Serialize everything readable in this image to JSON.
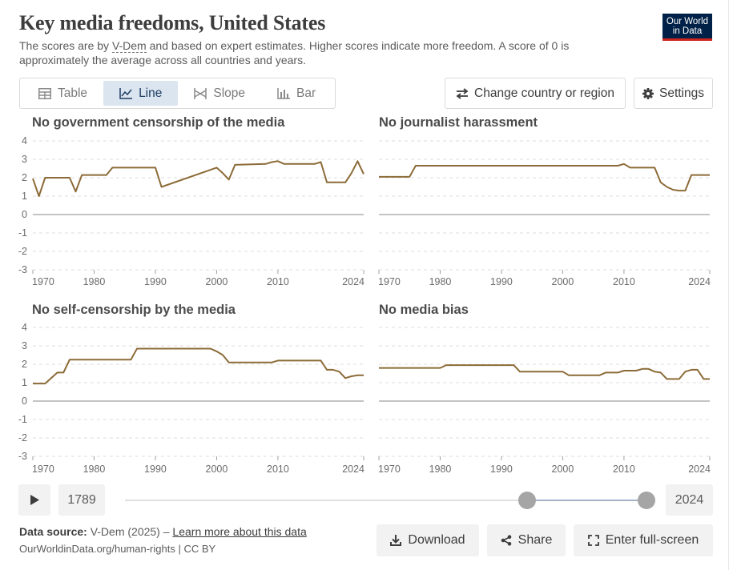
{
  "header": {
    "title": "Key media freedoms, United States",
    "subtitle_pre": "The scores are by ",
    "subtitle_link": "V-Dem",
    "subtitle_post": " and based on expert estimates. Higher scores indicate more freedom. A score of 0 is approximately the average across all countries and years.",
    "logo_line1": "Our World",
    "logo_line2": "in Data"
  },
  "tabs": [
    {
      "label": "Table",
      "icon": "table-icon"
    },
    {
      "label": "Line",
      "icon": "line-chart-icon",
      "active": true
    },
    {
      "label": "Slope",
      "icon": "slope-chart-icon"
    },
    {
      "label": "Bar",
      "icon": "bar-chart-icon"
    }
  ],
  "controls": {
    "change_label": "Change country or region",
    "settings_label": "Settings"
  },
  "colors": {
    "series": "#8c6b38",
    "accent": "#1d3d63",
    "logo_bg": "#002147",
    "logo_stripe": "#ce261e"
  },
  "chart_data": [
    {
      "type": "line",
      "title": "No government censorship of the media",
      "ylim": [
        -3,
        4
      ],
      "yticks": [
        -3,
        -2,
        -1,
        0,
        1,
        2,
        3,
        4
      ],
      "xticks": [
        1970,
        1980,
        1990,
        2000,
        2010,
        2024
      ],
      "xlim": [
        1970,
        2024
      ],
      "grid": true,
      "series": [
        {
          "x": [
            1970,
            1971,
            1972,
            1976,
            1977,
            1978,
            1982,
            1983,
            1989,
            1990,
            1991,
            2000,
            2001,
            2002,
            2003,
            2008,
            2009,
            2010,
            2011,
            2016,
            2017,
            2018,
            2021,
            2022,
            2023,
            2024
          ],
          "y": [
            1.95,
            1.0,
            2.0,
            2.0,
            1.25,
            2.15,
            2.15,
            2.55,
            2.55,
            2.55,
            1.5,
            2.55,
            2.25,
            1.9,
            2.7,
            2.75,
            2.85,
            2.9,
            2.75,
            2.75,
            2.85,
            1.75,
            1.75,
            2.25,
            2.9,
            2.2
          ]
        }
      ]
    },
    {
      "type": "line",
      "title": "No journalist harassment",
      "ylim": [
        -3,
        4
      ],
      "yticks": [
        -3,
        -2,
        -1,
        0,
        1,
        2,
        3,
        4
      ],
      "xticks": [
        1970,
        1980,
        1990,
        2000,
        2010,
        2024
      ],
      "xlim": [
        1970,
        2024
      ],
      "grid": true,
      "series": [
        {
          "x": [
            1970,
            1975,
            1976,
            2009,
            2010,
            2011,
            2015,
            2016,
            2017,
            2018,
            2019,
            2020,
            2021,
            2024
          ],
          "y": [
            2.05,
            2.05,
            2.65,
            2.65,
            2.75,
            2.55,
            2.55,
            1.75,
            1.5,
            1.35,
            1.3,
            1.3,
            2.15,
            2.15
          ]
        }
      ]
    },
    {
      "type": "line",
      "title": "No self-censorship by the media",
      "ylim": [
        -3,
        4
      ],
      "yticks": [
        -3,
        -2,
        -1,
        0,
        1,
        2,
        3,
        4
      ],
      "xticks": [
        1970,
        1980,
        1990,
        2000,
        2010,
        2024
      ],
      "xlim": [
        1970,
        2024
      ],
      "grid": true,
      "series": [
        {
          "x": [
            1970,
            1972,
            1974,
            1975,
            1976,
            1986,
            1987,
            1999,
            2000,
            2001,
            2002,
            2009,
            2010,
            2017,
            2018,
            2019,
            2020,
            2021,
            2022,
            2023,
            2024
          ],
          "y": [
            0.95,
            0.95,
            1.55,
            1.55,
            2.25,
            2.25,
            2.85,
            2.85,
            2.7,
            2.5,
            2.1,
            2.1,
            2.2,
            2.2,
            1.7,
            1.7,
            1.6,
            1.25,
            1.35,
            1.4,
            1.4
          ]
        }
      ]
    },
    {
      "type": "line",
      "title": "No media bias",
      "ylim": [
        -3,
        4
      ],
      "yticks": [
        -3,
        -2,
        -1,
        0,
        1,
        2,
        3,
        4
      ],
      "xticks": [
        1970,
        1980,
        1990,
        2000,
        2010,
        2024
      ],
      "xlim": [
        1970,
        2024
      ],
      "grid": true,
      "series": [
        {
          "x": [
            1970,
            1980,
            1981,
            1992,
            1993,
            2000,
            2001,
            2006,
            2007,
            2009,
            2010,
            2012,
            2013,
            2014,
            2015,
            2016,
            2017,
            2018,
            2019,
            2020,
            2021,
            2022,
            2023,
            2024
          ],
          "y": [
            1.8,
            1.8,
            1.95,
            1.95,
            1.6,
            1.6,
            1.4,
            1.4,
            1.55,
            1.55,
            1.65,
            1.65,
            1.75,
            1.75,
            1.6,
            1.55,
            1.2,
            1.2,
            1.2,
            1.6,
            1.7,
            1.7,
            1.2,
            1.2
          ]
        }
      ]
    }
  ],
  "timeline": {
    "start_year": "1789",
    "end_year": "2024",
    "range_start_fraction": 0.766,
    "range_end_fraction": 1.0
  },
  "footer": {
    "source_label": "Data source:",
    "source_text": " V-Dem (2025) – ",
    "learn_more": "Learn more about this data",
    "url_license": "OurWorldinData.org/human-rights | CC BY",
    "download_label": "Download",
    "share_label": "Share",
    "fullscreen_label": "Enter full-screen"
  }
}
